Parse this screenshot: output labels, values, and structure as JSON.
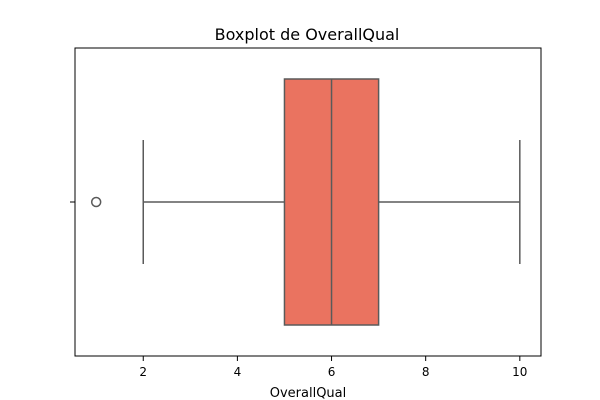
{
  "chart_data": {
    "type": "boxplot",
    "title": "Boxplot de OverallQual",
    "xlabel": "OverallQual",
    "ylabel": "",
    "orientation": "horizontal",
    "xlim": [
      0.55,
      10.45
    ],
    "xticks": [
      2,
      4,
      6,
      8,
      10
    ],
    "xtick_labels": [
      "2",
      "4",
      "6",
      "8",
      "10"
    ],
    "grid": false,
    "box": {
      "whisker_low": 2,
      "q1": 5,
      "median": 6,
      "q3": 7,
      "whisker_high": 10,
      "outliers": [
        1
      ]
    },
    "colors": {
      "box_fill": "#ea7360",
      "line": "#5a5a5a",
      "axis": "#000000"
    }
  }
}
